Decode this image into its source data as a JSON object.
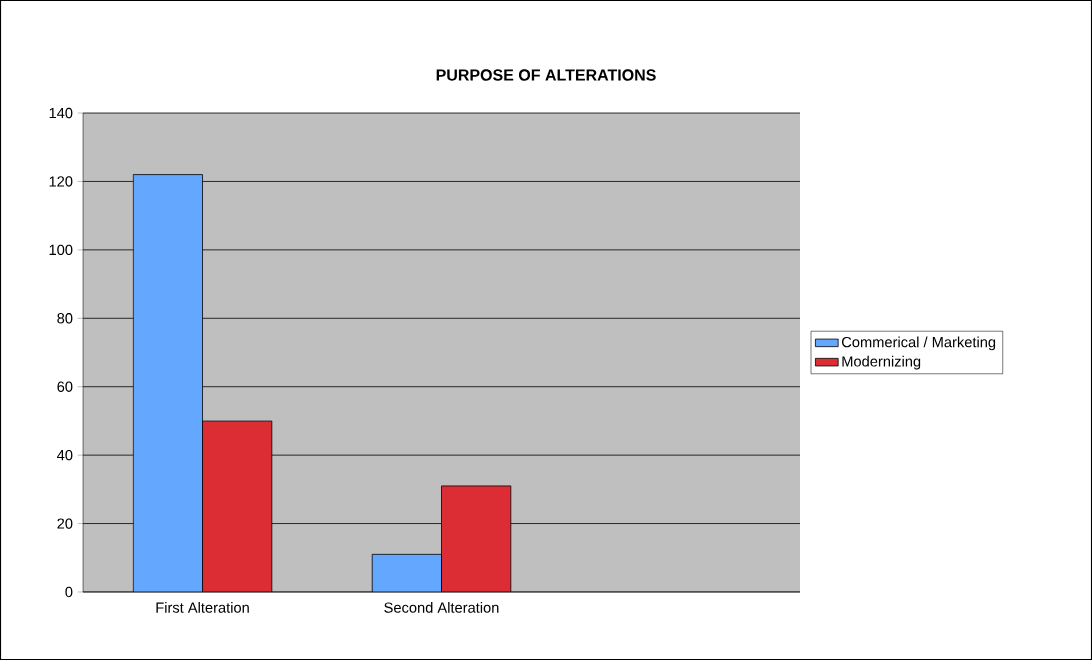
{
  "chart_data": {
    "type": "bar",
    "title": "PURPOSE OF ALTERATIONS",
    "categories": [
      "First Alteration",
      "Second Alteration",
      null
    ],
    "series": [
      {
        "name": "Commerical / Marketing",
        "color": "#63a8fe",
        "values": [
          122,
          11,
          null
        ]
      },
      {
        "name": "Modernizing",
        "color": "#dc2c34",
        "values": [
          50,
          31,
          null
        ]
      }
    ],
    "ylim": [
      0,
      140
    ],
    "yticks": [
      0,
      20,
      40,
      60,
      80,
      100,
      120,
      140
    ],
    "grid": "y",
    "legend": "right"
  }
}
